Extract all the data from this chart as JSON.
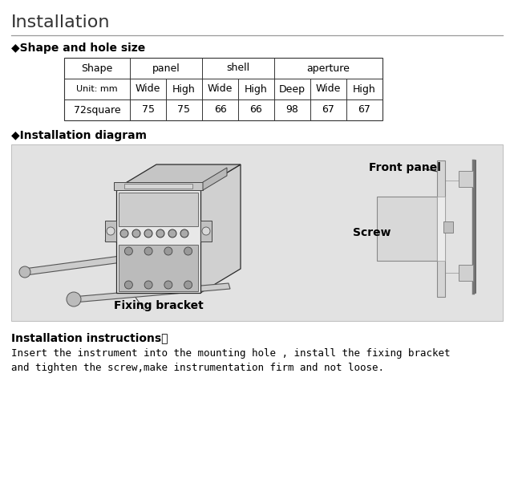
{
  "title": "Installation",
  "section1": "◆Shape and hole size",
  "section2": "◆Installation diagram",
  "section3": "Installation instructions：",
  "instruction_line1": "Insert the instrument into the mounting hole , install the fixing bracket",
  "instruction_line2": "and tighten the screw,make instrumentation firm and not loose.",
  "table_headers_row1": [
    "Shape",
    "panel",
    "shell",
    "aperture"
  ],
  "table_headers_row2": [
    "Unit: mm",
    "Wide",
    "High",
    "Wide",
    "High",
    "Deep",
    "Wide",
    "High"
  ],
  "table_data_row": [
    "72square",
    "75",
    "75",
    "66",
    "66",
    "98",
    "67",
    "67"
  ],
  "bg_color": "#ffffff",
  "diagram_bg": "#e2e2e2",
  "font_color": "#000000",
  "title_fontsize": 16,
  "section_fontsize": 10,
  "table_fontsize": 9,
  "label_fontsize": 10,
  "instr_label_fontsize": 10,
  "instr_text_fontsize": 9,
  "diagram_label_front_panel": "Front panel",
  "diagram_label_screw": "Screw",
  "diagram_label_fixing": "Fixing bracket"
}
